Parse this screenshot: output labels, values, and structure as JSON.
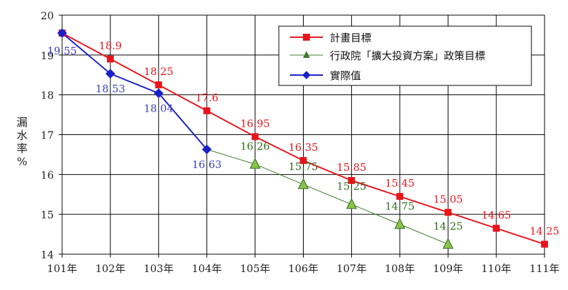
{
  "chart_data": {
    "type": "line",
    "categories": [
      "101年",
      "102年",
      "103年",
      "104年",
      "105年",
      "106年",
      "107年",
      "108年",
      "109年",
      "110年",
      "111年"
    ],
    "ylabel_chars": [
      "漏",
      "水",
      "率",
      "%"
    ],
    "ylim": [
      14,
      20
    ],
    "yticks": [
      "14",
      "15",
      "16",
      "17",
      "18",
      "19",
      "20"
    ],
    "grid": true,
    "legend_position": "top-right",
    "series": [
      {
        "name": "計畫目標",
        "color": "#e8141b",
        "marker": "square",
        "label_color": "#e8141b",
        "values": [
          19.55,
          18.9,
          18.25,
          17.6,
          16.95,
          16.35,
          15.85,
          15.45,
          15.05,
          14.65,
          14.25
        ],
        "labels": [
          "",
          "18.9",
          "18.25",
          "17.6",
          "16.95",
          "16.35",
          "15.85",
          "15.45",
          "15.05",
          "14.65",
          "14.25"
        ]
      },
      {
        "name": "行政院「擴大投資方案」政策目標",
        "color": "#3c7a2a",
        "marker_fill": "#8bc34a",
        "marker": "triangle",
        "label_color": "#2f6b1e",
        "values": [
          null,
          null,
          null,
          16.63,
          16.26,
          15.75,
          15.25,
          14.75,
          14.25,
          null,
          null
        ],
        "labels": [
          "",
          "",
          "",
          "",
          "16.26",
          "15.75",
          "15.25",
          "14.75",
          "14.25",
          "",
          ""
        ]
      },
      {
        "name": "實際值",
        "color": "#1a20c8",
        "marker": "diamond",
        "label_color": "#3a3fb8",
        "values": [
          19.55,
          18.53,
          18.04,
          16.63,
          null,
          null,
          null,
          null,
          null,
          null,
          null
        ],
        "labels": [
          "19.55",
          "18.53",
          "18.04",
          "16.63",
          "",
          "",
          "",
          "",
          "",
          "",
          ""
        ]
      }
    ]
  }
}
